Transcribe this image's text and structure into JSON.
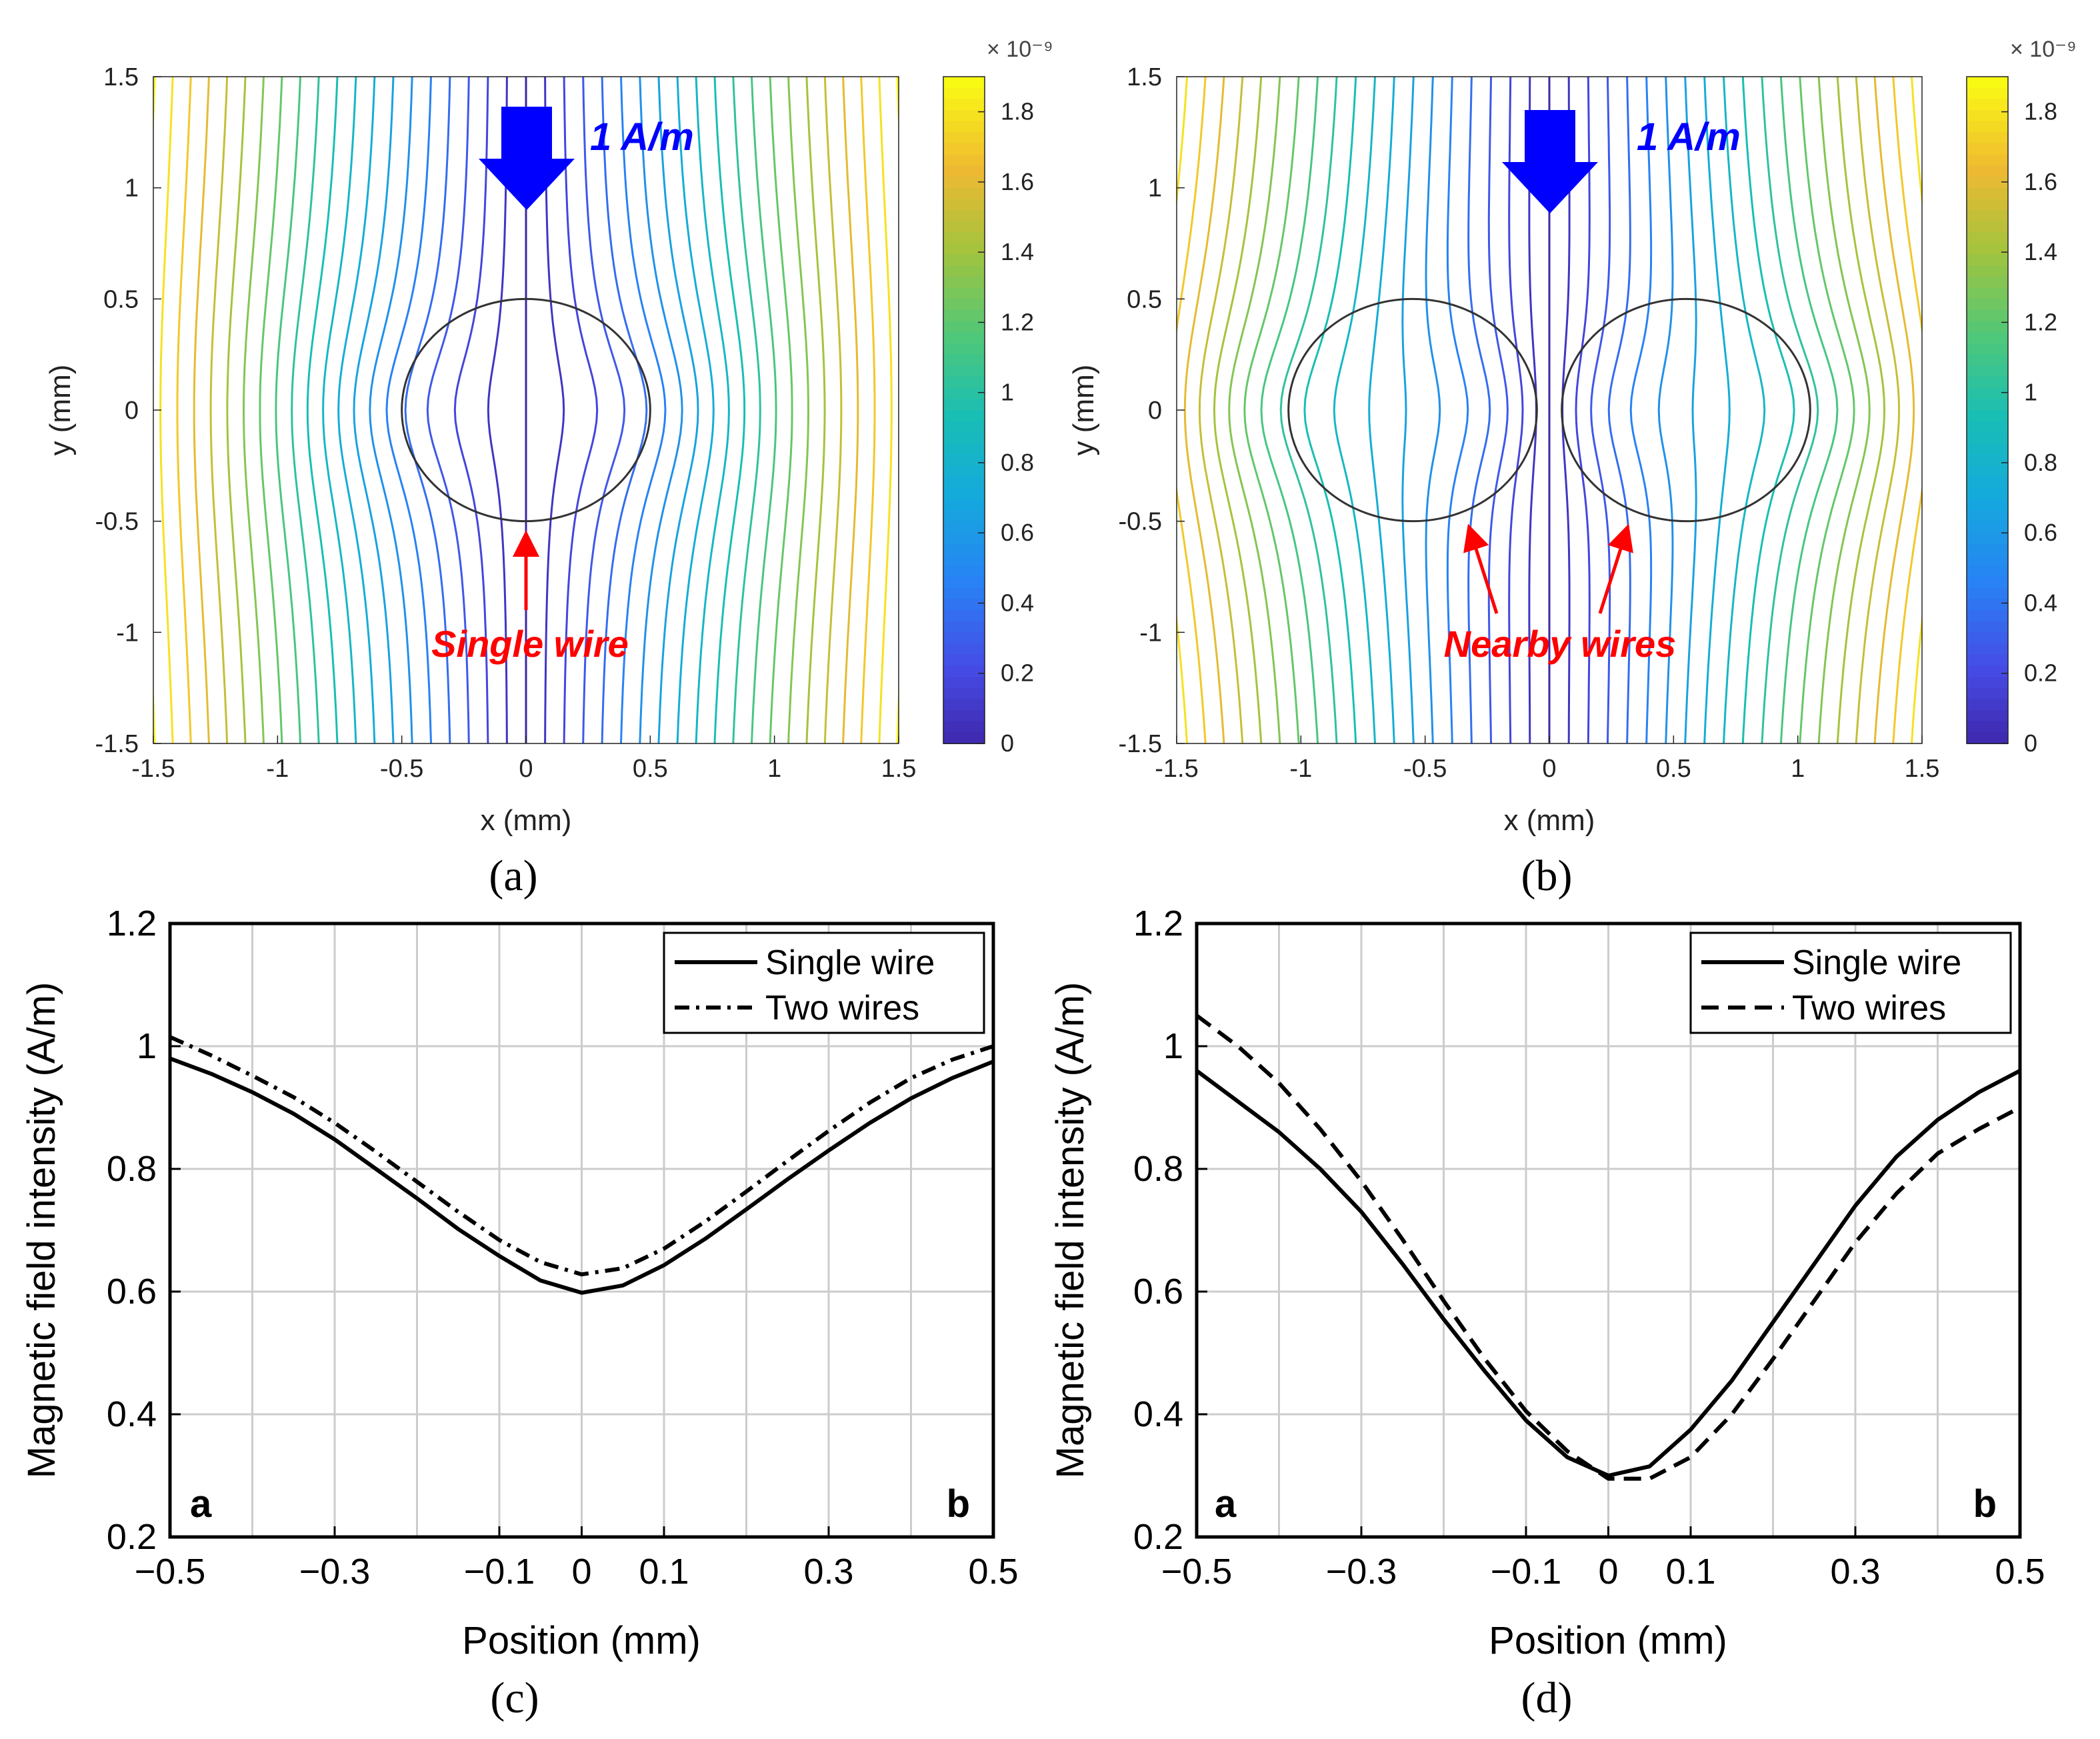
{
  "colors": {
    "annotation_red": "#ff0000",
    "current_blue": "#0000ff",
    "curve_black": "#000000",
    "grid": "#cccccc",
    "wire_outline": "#333333"
  },
  "colorbar": {
    "colormap": "parula",
    "multiplier": "× 10⁻⁹",
    "ticks": [
      {
        "value": 0,
        "label": "0"
      },
      {
        "value": 0.2,
        "label": "0.2"
      },
      {
        "value": 0.4,
        "label": "0.4"
      },
      {
        "value": 0.6,
        "label": "0.6"
      },
      {
        "value": 0.8,
        "label": "0.8"
      },
      {
        "value": 1.0,
        "label": "1"
      },
      {
        "value": 1.2,
        "label": "1.2"
      },
      {
        "value": 1.4,
        "label": "1.4"
      },
      {
        "value": 1.6,
        "label": "1.6"
      },
      {
        "value": 1.8,
        "label": "1.8"
      }
    ],
    "range": [
      0,
      1.9
    ]
  },
  "chart_data": [
    {
      "id": "a",
      "type": "contour",
      "caption": "(a)",
      "xlabel": "x (mm)",
      "ylabel": "y (mm)",
      "xlim": [
        -1.5,
        1.5
      ],
      "ylim": [
        -1.5,
        1.5
      ],
      "xticks": [
        "-1.5",
        "-1",
        "-0.5",
        "0",
        "0.5",
        "1",
        "1.5"
      ],
      "yticks": [
        "-1.5",
        "-1",
        "-0.5",
        "0",
        "0.5",
        "1",
        "1.5"
      ],
      "wires": [
        {
          "cx": 0,
          "cy": 0,
          "r": 0.5
        }
      ],
      "current_label": "1 A/m",
      "annotation": "Single wire"
    },
    {
      "id": "b",
      "type": "contour",
      "caption": "(b)",
      "xlabel": "x (mm)",
      "ylabel": "y (mm)",
      "xlim": [
        -1.5,
        1.5
      ],
      "ylim": [
        -1.5,
        1.5
      ],
      "xticks": [
        "-1.5",
        "-1",
        "-0.5",
        "0",
        "0.5",
        "1",
        "1.5"
      ],
      "yticks": [
        "-1.5",
        "-1",
        "-0.5",
        "0",
        "0.5",
        "1",
        "1.5"
      ],
      "wires": [
        {
          "cx": -0.55,
          "cy": 0,
          "r": 0.5
        },
        {
          "cx": 0.55,
          "cy": 0,
          "r": 0.5
        }
      ],
      "current_label": "1 A/m",
      "annotation": "Nearby wires"
    },
    {
      "id": "c",
      "type": "line",
      "caption": "(c)",
      "xlabel": "Position (mm)",
      "ylabel": "Magnetic field intensity (A/m)",
      "xlim": [
        -0.5,
        0.5
      ],
      "ylim": [
        0.2,
        1.2
      ],
      "xticks": [
        "−0.5",
        "−0.3",
        "−0.1",
        "0",
        "0.1",
        "0.3",
        "0.5"
      ],
      "yticks": [
        "0.2",
        "0.4",
        "0.6",
        "0.8",
        "1",
        "1.2"
      ],
      "corner_labels": {
        "left": "a",
        "right": "b"
      },
      "x": [
        -0.5,
        -0.45,
        -0.4,
        -0.35,
        -0.3,
        -0.25,
        -0.2,
        -0.15,
        -0.1,
        -0.05,
        0,
        0.05,
        0.1,
        0.15,
        0.2,
        0.25,
        0.3,
        0.35,
        0.4,
        0.45,
        0.5
      ],
      "series": [
        {
          "name": "Single wire",
          "dash": "solid",
          "values": [
            0.98,
            0.955,
            0.925,
            0.89,
            0.848,
            0.8,
            0.752,
            0.702,
            0.658,
            0.618,
            0.598,
            0.61,
            0.643,
            0.686,
            0.734,
            0.783,
            0.83,
            0.875,
            0.915,
            0.948,
            0.975
          ]
        },
        {
          "name": "Two wires",
          "dash": "dashdot",
          "values": [
            1.015,
            0.985,
            0.952,
            0.917,
            0.875,
            0.828,
            0.779,
            0.73,
            0.684,
            0.648,
            0.628,
            0.638,
            0.67,
            0.714,
            0.763,
            0.813,
            0.862,
            0.908,
            0.948,
            0.978,
            1.0
          ]
        }
      ]
    },
    {
      "id": "d",
      "type": "line",
      "caption": "(d)",
      "xlabel": "Position (mm)",
      "ylabel": "Magnetic field intensity (A/m)",
      "xlim": [
        -0.5,
        0.5
      ],
      "ylim": [
        0.2,
        1.2
      ],
      "xticks": [
        "−0.5",
        "−0.3",
        "−0.1",
        "0",
        "0.1",
        "0.3",
        "0.5"
      ],
      "yticks": [
        "0.2",
        "0.4",
        "0.6",
        "0.8",
        "1",
        "1.2"
      ],
      "corner_labels": {
        "left": "a",
        "right": "b"
      },
      "x": [
        -0.5,
        -0.45,
        -0.4,
        -0.35,
        -0.3,
        -0.25,
        -0.2,
        -0.15,
        -0.1,
        -0.05,
        0,
        0.05,
        0.1,
        0.15,
        0.2,
        0.25,
        0.3,
        0.35,
        0.4,
        0.45,
        0.5
      ],
      "series": [
        {
          "name": "Single wire",
          "dash": "solid",
          "values": [
            0.96,
            0.91,
            0.86,
            0.8,
            0.73,
            0.645,
            0.555,
            0.47,
            0.39,
            0.33,
            0.3,
            0.315,
            0.375,
            0.455,
            0.55,
            0.645,
            0.74,
            0.82,
            0.88,
            0.925,
            0.96
          ]
        },
        {
          "name": "Two wires",
          "dash": "dashed",
          "values": [
            1.05,
            1.0,
            0.94,
            0.865,
            0.78,
            0.685,
            0.585,
            0.49,
            0.405,
            0.34,
            0.295,
            0.295,
            0.33,
            0.4,
            0.49,
            0.585,
            0.68,
            0.76,
            0.825,
            0.865,
            0.9
          ]
        }
      ]
    }
  ]
}
